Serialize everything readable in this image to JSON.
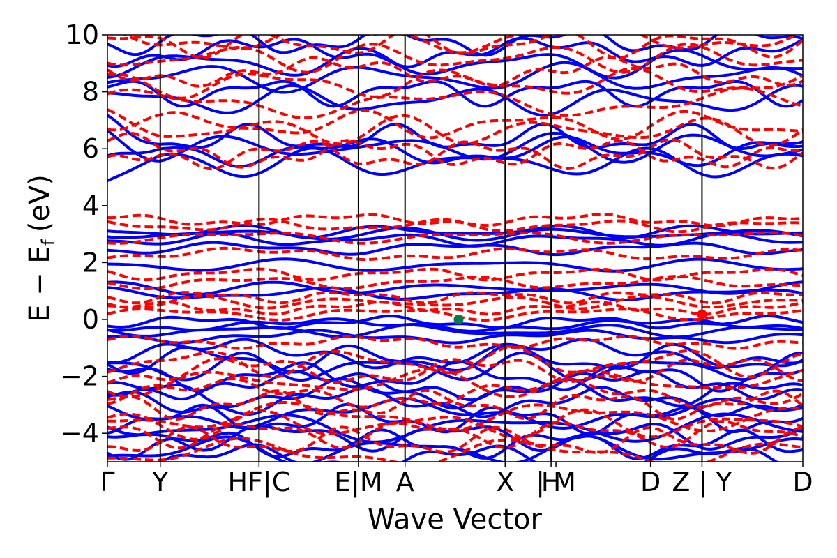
{
  "chart_data": {
    "type": "line",
    "xlabel": "Wave Vector",
    "ylabel_main": "E − E",
    "ylabel_sub": "f",
    "ylabel_unit": "(eV)",
    "ylim": [
      -5,
      10
    ],
    "yticks": [
      10,
      8,
      6,
      4,
      2,
      0,
      -2,
      -4
    ],
    "ytick_labels": [
      "10",
      "8",
      "6",
      "4",
      "2",
      "0",
      "−2",
      "−4"
    ],
    "xlim": [
      0,
      1
    ],
    "kpoint_boundaries": [
      0.076,
      0.218,
      0.361,
      0.428,
      0.572,
      0.638,
      0.781,
      0.855
    ],
    "xtick_labels": [
      {
        "x": 0.0,
        "label": "Γ"
      },
      {
        "x": 0.076,
        "label": "Y"
      },
      {
        "x": 0.218,
        "label": "HF|C"
      },
      {
        "x": 0.361,
        "label": "E|M"
      },
      {
        "x": 0.428,
        "label": "A"
      },
      {
        "x": 0.572,
        "label": "X"
      },
      {
        "x": 0.638,
        "label": "H"
      },
      {
        "x": 0.645,
        "label": "| M"
      },
      {
        "x": 0.781,
        "label": "D"
      },
      {
        "x": 0.855,
        "label": "Z | Y"
      },
      {
        "x": 1.0,
        "label": "D"
      }
    ],
    "series": [
      {
        "line_style": "solid",
        "color": "#0000ff",
        "approx_band_energies_at_gamma": [
          9.8,
          9.4,
          9.0,
          8.5,
          8.0,
          7.7,
          6.7,
          6.4,
          5.3,
          4.9,
          3.1,
          3.0,
          2.8,
          2.5,
          1.9,
          1.1,
          0.9,
          -0.1,
          -0.2,
          -0.4,
          -0.6,
          -1.2,
          -1.4,
          -1.7,
          -2.0,
          -2.3,
          -2.6,
          -2.9,
          -3.3,
          -3.5,
          -3.8,
          -4.1,
          -4.4,
          -4.6,
          -4.9
        ]
      },
      {
        "line_style": "dashed",
        "color": "#ff0000",
        "approx_band_energies_at_gamma": [
          9.9,
          9.7,
          9.2,
          8.7,
          8.3,
          7.6,
          7.2,
          7.0,
          6.2,
          5.2,
          3.5,
          3.3,
          2.9,
          2.3,
          1.6,
          1.3,
          0.8,
          0.6,
          0.4,
          0.2,
          -0.8,
          -1.5,
          -1.8,
          -2.2,
          -2.6,
          -3.0,
          -3.4,
          -3.7,
          -4.0,
          -4.3,
          -4.7
        ]
      }
    ],
    "markers": [
      {
        "x": 0.505,
        "y": 0.0,
        "color": "#008040"
      },
      {
        "x": 0.855,
        "y": 0.18,
        "color": "#ff0000"
      }
    ]
  }
}
